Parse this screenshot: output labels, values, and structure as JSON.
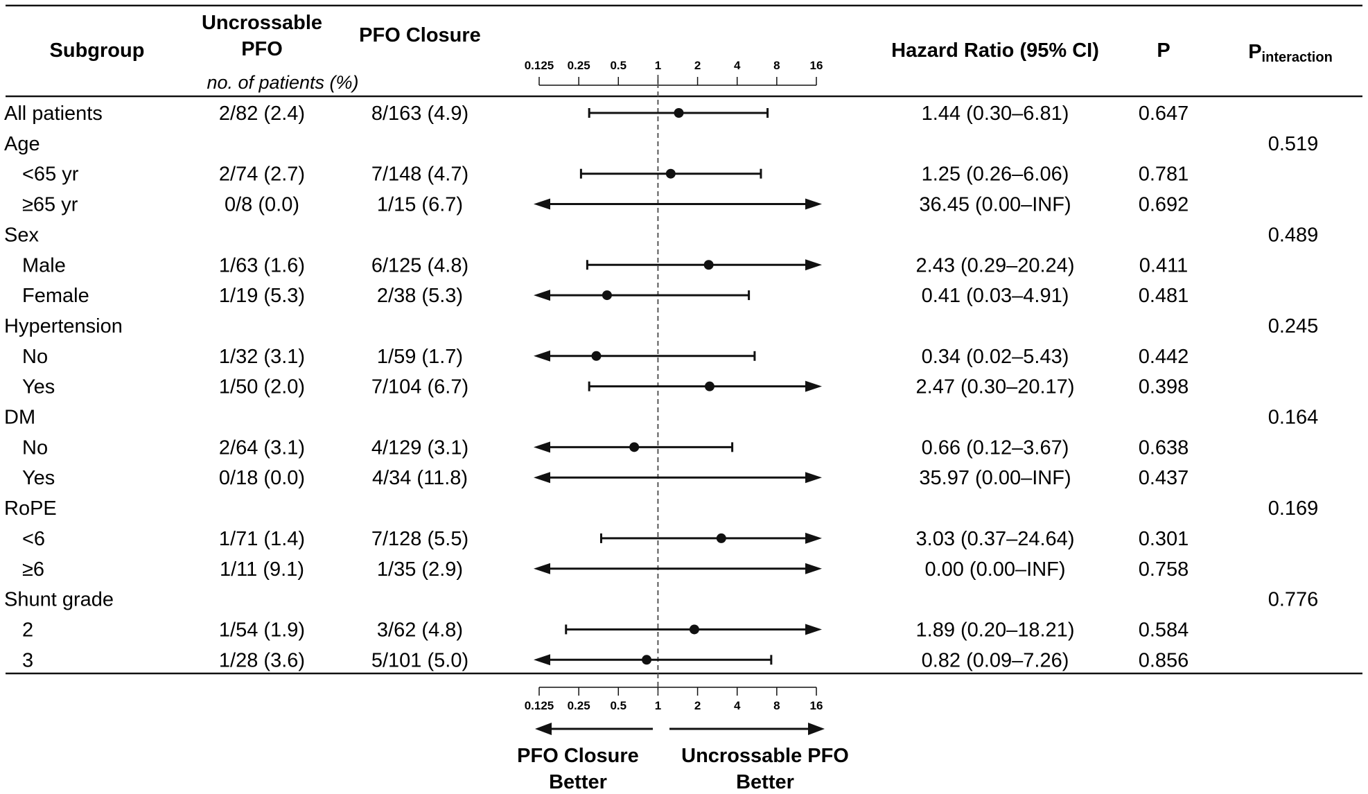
{
  "header": {
    "subgroup": "Subgroup",
    "uncrossable_line1": "Uncrossable",
    "uncrossable_line2": "PFO",
    "closure": "PFO Closure",
    "patients_note": "no. of patients (%)",
    "hr": "Hazard Ratio (95% CI)",
    "p": "P",
    "pint_main": "P",
    "pint_sub": "interaction"
  },
  "footer": {
    "left_label_line1": "PFO Closure",
    "left_label_line2": "Better",
    "right_label_line1": "Uncrossable PFO",
    "right_label_line2": "Better"
  },
  "chart_data": {
    "type": "forest",
    "x_scale": "log2",
    "x_ticks": [
      "0.125",
      "0.25",
      "0.5",
      "1",
      "2",
      "4",
      "8",
      "16"
    ],
    "xlim": [
      0.125,
      16
    ],
    "reference_line": 1,
    "rows": [
      {
        "label": "All patients",
        "indent": false,
        "uncrossable": "2/82 (2.4)",
        "closure": "8/163 (4.9)",
        "hr": 1.44,
        "lo": 0.3,
        "hi": 6.81,
        "hr_text": "1.44 (0.30–6.81)",
        "p": "0.647",
        "pint": ""
      },
      {
        "label": "Age",
        "indent": false,
        "uncrossable": "",
        "closure": "",
        "hr": null,
        "lo": null,
        "hi": null,
        "hr_text": "",
        "p": "",
        "pint": "0.519"
      },
      {
        "label": "<65 yr",
        "indent": true,
        "uncrossable": "2/74 (2.7)",
        "closure": "7/148 (4.7)",
        "hr": 1.25,
        "lo": 0.26,
        "hi": 6.06,
        "hr_text": "1.25 (0.26–6.06)",
        "p": "0.781",
        "pint": ""
      },
      {
        "label": "≥65 yr",
        "indent": true,
        "uncrossable": "0/8 (0.0)",
        "closure": "1/15 (6.7)",
        "hr": 36.45,
        "lo": 0.0,
        "hi": "INF",
        "hr_text": "36.45 (0.00–INF)",
        "p": "0.692",
        "pint": ""
      },
      {
        "label": "Sex",
        "indent": false,
        "uncrossable": "",
        "closure": "",
        "hr": null,
        "lo": null,
        "hi": null,
        "hr_text": "",
        "p": "",
        "pint": "0.489"
      },
      {
        "label": "Male",
        "indent": true,
        "uncrossable": "1/63 (1.6)",
        "closure": "6/125 (4.8)",
        "hr": 2.43,
        "lo": 0.29,
        "hi": 20.24,
        "hr_text": "2.43 (0.29–20.24)",
        "p": "0.411",
        "pint": ""
      },
      {
        "label": "Female",
        "indent": true,
        "uncrossable": "1/19 (5.3)",
        "closure": "2/38 (5.3)",
        "hr": 0.41,
        "lo": 0.03,
        "hi": 4.91,
        "hr_text": "0.41 (0.03–4.91)",
        "p": "0.481",
        "pint": ""
      },
      {
        "label": "Hypertension",
        "indent": false,
        "uncrossable": "",
        "closure": "",
        "hr": null,
        "lo": null,
        "hi": null,
        "hr_text": "",
        "p": "",
        "pint": "0.245"
      },
      {
        "label": "No",
        "indent": true,
        "uncrossable": "1/32 (3.1)",
        "closure": "1/59 (1.7)",
        "hr": 0.34,
        "lo": 0.02,
        "hi": 5.43,
        "hr_text": "0.34 (0.02–5.43)",
        "p": "0.442",
        "pint": ""
      },
      {
        "label": "Yes",
        "indent": true,
        "uncrossable": "1/50 (2.0)",
        "closure": "7/104 (6.7)",
        "hr": 2.47,
        "lo": 0.3,
        "hi": 20.17,
        "hr_text": "2.47 (0.30–20.17)",
        "p": "0.398",
        "pint": ""
      },
      {
        "label": "DM",
        "indent": false,
        "uncrossable": "",
        "closure": "",
        "hr": null,
        "lo": null,
        "hi": null,
        "hr_text": "",
        "p": "",
        "pint": "0.164"
      },
      {
        "label": "No",
        "indent": true,
        "uncrossable": "2/64 (3.1)",
        "closure": "4/129 (3.1)",
        "hr": 0.66,
        "lo": 0.12,
        "hi": 3.67,
        "hr_text": "0.66 (0.12–3.67)",
        "p": "0.638",
        "pint": ""
      },
      {
        "label": "Yes",
        "indent": true,
        "uncrossable": "0/18 (0.0)",
        "closure": "4/34 (11.8)",
        "hr": 35.97,
        "lo": 0.0,
        "hi": "INF",
        "hr_text": "35.97 (0.00–INF)",
        "p": "0.437",
        "pint": ""
      },
      {
        "label": "RoPE",
        "indent": false,
        "uncrossable": "",
        "closure": "",
        "hr": null,
        "lo": null,
        "hi": null,
        "hr_text": "",
        "p": "",
        "pint": "0.169"
      },
      {
        "label": "<6",
        "indent": true,
        "uncrossable": "1/71 (1.4)",
        "closure": "7/128 (5.5)",
        "hr": 3.03,
        "lo": 0.37,
        "hi": 24.64,
        "hr_text": "3.03 (0.37–24.64)",
        "p": "0.301",
        "pint": ""
      },
      {
        "label": "≥6",
        "indent": true,
        "uncrossable": "1/11 (9.1)",
        "closure": "1/35 (2.9)",
        "hr": 0.0,
        "lo": 0.0,
        "hi": "INF",
        "hr_text": "0.00 (0.00–INF)",
        "p": "0.758",
        "pint": ""
      },
      {
        "label": "Shunt grade",
        "indent": false,
        "uncrossable": "",
        "closure": "",
        "hr": null,
        "lo": null,
        "hi": null,
        "hr_text": "",
        "p": "",
        "pint": "0.776"
      },
      {
        "label": "2",
        "indent": true,
        "uncrossable": "1/54 (1.9)",
        "closure": "3/62 (4.8)",
        "hr": 1.89,
        "lo": 0.2,
        "hi": 18.21,
        "hr_text": "1.89 (0.20–18.21)",
        "p": "0.584",
        "pint": ""
      },
      {
        "label": "3",
        "indent": true,
        "uncrossable": "1/28 (3.6)",
        "closure": "5/101 (5.0)",
        "hr": 0.82,
        "lo": 0.09,
        "hi": 7.26,
        "hr_text": "0.82 (0.09–7.26)",
        "p": "0.856",
        "pint": ""
      }
    ]
  }
}
